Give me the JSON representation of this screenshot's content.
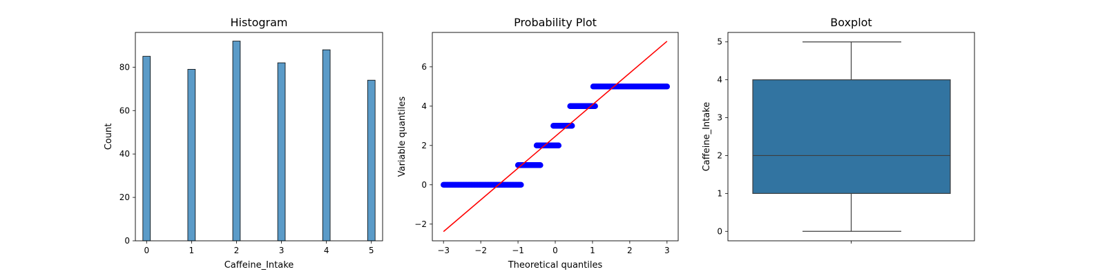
{
  "chart_data": [
    {
      "type": "bar",
      "title": "Histogram",
      "xlabel": "Caffeine_Intake",
      "ylabel": "Count",
      "xlim": [
        -0.25,
        5.25
      ],
      "ylim": [
        0,
        96
      ],
      "x_ticks": [
        0,
        1,
        2,
        3,
        4,
        5
      ],
      "y_ticks": [
        0,
        20,
        40,
        60,
        80
      ],
      "categories": [
        0,
        1,
        2,
        3,
        4,
        5
      ],
      "values": [
        85,
        79,
        92,
        82,
        88,
        74
      ],
      "bar_color": "#5b9bc8",
      "grid": false
    },
    {
      "type": "scatter",
      "title": "Probability Plot",
      "xlabel": "Theoretical quantiles",
      "ylabel": "Variable quantiles",
      "xlim": [
        -3.3,
        3.3
      ],
      "ylim": [
        -2.85,
        7.75
      ],
      "x_ticks": [
        -3,
        -2,
        -1,
        0,
        1,
        2,
        3
      ],
      "y_ticks": [
        -2,
        0,
        2,
        4,
        6
      ],
      "tick_labels": {
        "x": [
          "−3",
          "−2",
          "−1",
          "0",
          "1",
          "2",
          "3"
        ],
        "y": [
          "−2",
          "0",
          "2",
          "4",
          "6"
        ]
      },
      "clusters": [
        {
          "y": 0,
          "x_from": -3.0,
          "x_to": -0.92,
          "n": 85
        },
        {
          "y": 1,
          "x_from": -1.0,
          "x_to": -0.4,
          "n": 79
        },
        {
          "y": 2,
          "x_from": -0.5,
          "x_to": 0.09,
          "n": 92
        },
        {
          "y": 3,
          "x_from": -0.05,
          "x_to": 0.45,
          "n": 82
        },
        {
          "y": 4,
          "x_from": 0.4,
          "x_to": 1.07,
          "n": 88
        },
        {
          "y": 5,
          "x_from": 1.02,
          "x_to": 3.0,
          "n": 74
        }
      ],
      "fit_line": {
        "x": [
          -3.0,
          3.0
        ],
        "y": [
          -2.38,
          7.3
        ]
      },
      "point_color": "#0000ff",
      "line_color": "#ff0000",
      "grid": false
    },
    {
      "type": "box",
      "title": "Boxplot",
      "xlabel": "",
      "ylabel": "Caffeine_Intake",
      "ylim": [
        -0.25,
        5.25
      ],
      "y_ticks": [
        0,
        1,
        2,
        3,
        4,
        5
      ],
      "stats": {
        "min": 0,
        "q1": 1,
        "median": 2,
        "q3": 4,
        "max": 5
      },
      "box_color": "#3274a1",
      "grid": false
    }
  ]
}
